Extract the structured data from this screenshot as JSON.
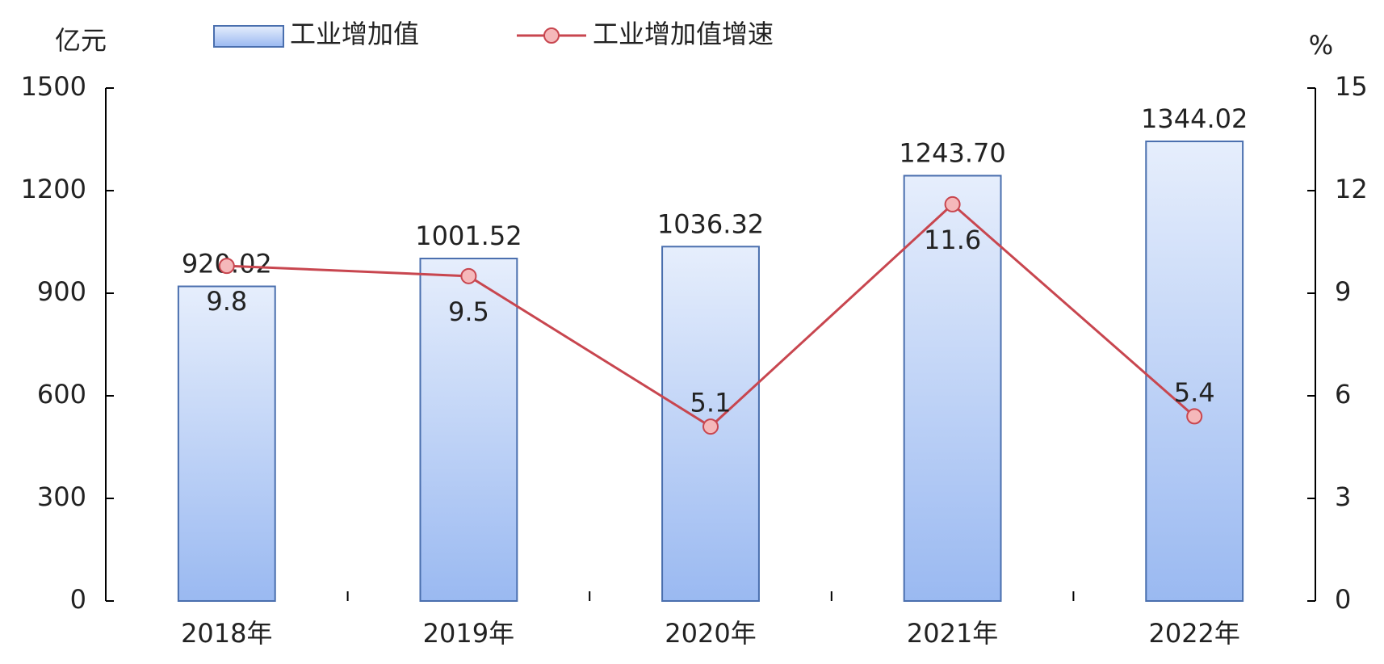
{
  "chart_data": {
    "type": "bar",
    "y_label": "亿元",
    "y2_label": "%",
    "categories": [
      "2018年",
      "2019年",
      "2020年",
      "2021年",
      "2022年"
    ],
    "series": [
      {
        "name": "工业增加值",
        "type": "bar",
        "color": "#4a6fae",
        "values": [
          920.02,
          1001.52,
          1036.32,
          1243.7,
          1344.02
        ],
        "value_labels": [
          "920.02",
          "1001.52",
          "1036.32",
          "1243.70",
          "1344.02"
        ]
      },
      {
        "name": "工业增加值增速",
        "type": "line",
        "axis": "y2",
        "color": "#c8464f",
        "values": [
          9.8,
          9.5,
          5.1,
          11.6,
          5.4
        ]
      }
    ],
    "ylim": [
      0,
      1500
    ],
    "yticks": [
      0,
      300,
      600,
      900,
      1200,
      1500
    ],
    "y2lim": [
      0,
      15
    ],
    "y2ticks": [
      0,
      3,
      6,
      9,
      12,
      15
    ]
  }
}
